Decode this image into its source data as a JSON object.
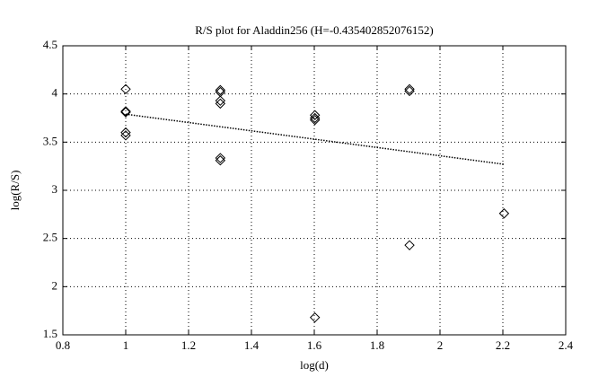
{
  "chart_data": {
    "type": "scatter",
    "title": "R/S plot for Aladdin256 (H=-0.435402852076152)",
    "x_label": "log(d)",
    "y_label": "log(R/S)",
    "xlim": [
      0.8,
      2.4
    ],
    "xticks": [
      0.8,
      1,
      1.2,
      1.4,
      1.6,
      1.8,
      2,
      2.2,
      2.4
    ],
    "ylim": [
      1.5,
      4.5
    ],
    "yticks": [
      1.5,
      2,
      2.5,
      3,
      3.5,
      4,
      4.5
    ],
    "grid": true,
    "series": [
      {
        "marker": "diamond",
        "color": "#000000",
        "x": [
          1,
          1,
          1,
          1,
          1,
          1.301,
          1.301,
          1.301,
          1.301,
          1.301,
          1.301,
          1.602,
          1.602,
          1.602,
          1.602,
          1.903,
          1.903,
          1.903,
          2.204
        ],
        "values": [
          4.05,
          3.82,
          3.81,
          3.6,
          3.57,
          4.04,
          4.02,
          3.93,
          3.9,
          3.335,
          3.31,
          3.78,
          3.75,
          3.73,
          1.68,
          4.05,
          4.03,
          2.43,
          2.76
        ]
      },
      {
        "marker": "dotted-line",
        "color": "#000000",
        "x": [
          1,
          2.204
        ],
        "values": [
          3.79,
          3.27
        ]
      }
    ]
  }
}
